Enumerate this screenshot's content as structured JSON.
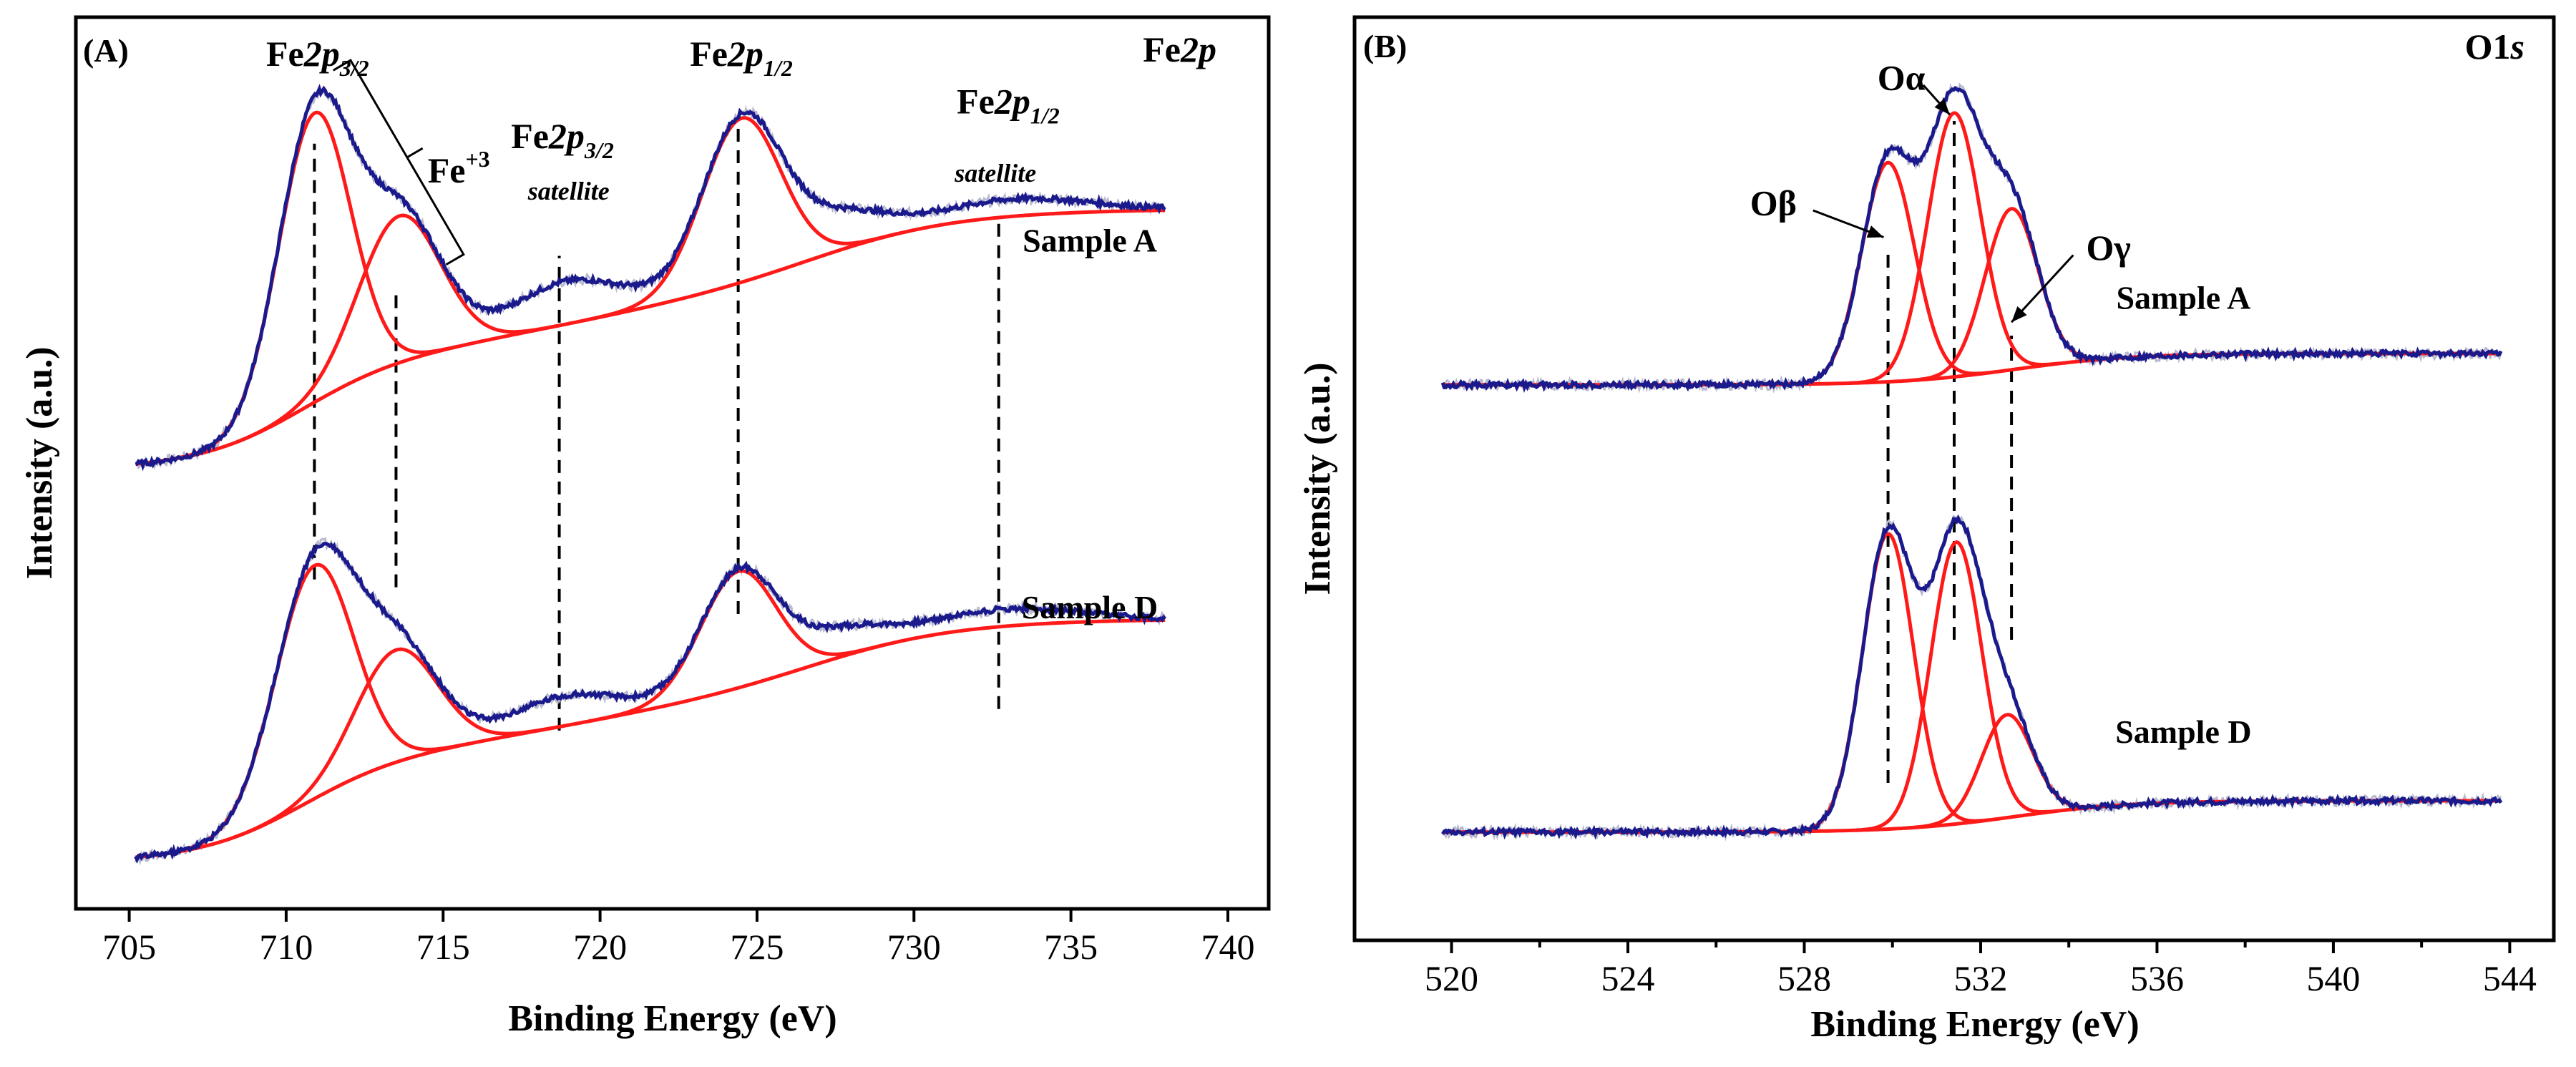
{
  "chart_data": [
    {
      "type": "line",
      "panel_label": "(A)",
      "corner_label": {
        "main": "Fe",
        "emph": "2p"
      },
      "xlabel": "Binding Energy (eV)",
      "ylabel": "Intensity (a.u.)",
      "xlim": [
        703.3,
        741.3
      ],
      "x_ticks": [
        705,
        710,
        715,
        720,
        725,
        730,
        735,
        740
      ],
      "x_tick_labels": [
        "705",
        "710",
        "715",
        "720",
        "725",
        "730",
        "735",
        "740"
      ],
      "ylim": [
        0,
        1
      ],
      "x_start": 705.2,
      "x_end": 738,
      "colors": {
        "envelope": "#1a1a8c",
        "component": "#ff1a1a",
        "raw": "#b9b9cf"
      },
      "annotations": [
        {
          "id": "fe2p32",
          "main": "Fe",
          "emph": "2p",
          "sub": "3/2",
          "x": 711,
          "y": 0.96
        },
        {
          "id": "fe3",
          "main": "Fe",
          "sup": "+3",
          "x": 715.5,
          "y": 0.825
        },
        {
          "id": "fe2p32sat",
          "main": "Fe",
          "emph": "2p",
          "sub": "3/2",
          "x": 718.8,
          "y": 0.865
        },
        {
          "id": "fe2p32sat_note",
          "text": "satellite",
          "x": 719,
          "y": 0.805
        },
        {
          "id": "fe2p12",
          "main": "Fe",
          "emph": "2p",
          "sub": "1/2",
          "x": 724.5,
          "y": 0.96
        },
        {
          "id": "fe2p12sat",
          "main": "Fe",
          "emph": "2p",
          "sub": "1/2",
          "x": 733,
          "y": 0.905
        },
        {
          "id": "fe2p12sat_note",
          "text": "satellite",
          "x": 732.6,
          "y": 0.826
        }
      ],
      "dashed_guides": [
        {
          "x": 710.9,
          "y1": 0.365,
          "y2": 0.87
        },
        {
          "x": 713.5,
          "y1": 0.356,
          "y2": 0.7
        },
        {
          "x": 718.7,
          "y1": 0.19,
          "y2": 0.74
        },
        {
          "x": 724.4,
          "y1": 0.325,
          "y2": 0.9
        },
        {
          "x": 732.7,
          "y1": 0.215,
          "y2": 0.78
        }
      ],
      "bracket": {
        "x1": 711.5,
        "x2": 715.1,
        "y1": 0.955,
        "y2": 0.73
      },
      "samples": [
        {
          "name": "Sample A",
          "label_pos": [
            735.6,
            0.745
          ],
          "baseline": {
            "y0": 0.49,
            "rise": [
              0.115,
              0.11,
              0.08
            ],
            "centers": [
              710.5,
              719,
              727
            ],
            "widths": [
              1.6,
              4.5,
              2.2
            ]
          },
          "components": [
            {
              "center": 710.9,
              "amp": 0.335,
              "sigma": 1.15
            },
            {
              "center": 713.6,
              "amp": 0.17,
              "sigma": 1.3
            },
            {
              "center": 718.9,
              "amp": 0.05,
              "sigma": 1.8
            },
            {
              "center": 724.5,
              "amp": 0.19,
              "sigma": 1.25
            },
            {
              "center": 727.5,
              "amp": 0.04,
              "sigma": 1.5
            },
            {
              "center": 733,
              "amp": 0.02,
              "sigma": 2.5
            }
          ]
        },
        {
          "name": "Sample D",
          "label_pos": [
            735.6,
            0.32
          ],
          "baseline": {
            "y0": 0.035,
            "rise": [
              0.11,
              0.1,
              0.075
            ],
            "centers": [
              710.5,
              719,
              727
            ],
            "widths": [
              1.6,
              4.5,
              2.2
            ]
          },
          "components": [
            {
              "center": 710.9,
              "amp": 0.27,
              "sigma": 1.25
            },
            {
              "center": 713.5,
              "amp": 0.13,
              "sigma": 1.3
            },
            {
              "center": 718.8,
              "amp": 0.035,
              "sigma": 1.8
            },
            {
              "center": 724.4,
              "amp": 0.135,
              "sigma": 1.2
            },
            {
              "center": 727.5,
              "amp": 0.03,
              "sigma": 1.5
            },
            {
              "center": 732.7,
              "amp": 0.02,
              "sigma": 2.5
            }
          ]
        }
      ]
    },
    {
      "type": "line",
      "panel_label": "(B)",
      "corner_label": {
        "main": "O1",
        "emph": "s"
      },
      "xlabel": "Binding Energy (eV)",
      "ylabel": "Intensity (a.u.)",
      "xlim": [
        517.8,
        545
      ],
      "x_ticks": [
        520,
        524,
        528,
        532,
        536,
        540,
        544
      ],
      "x_tick_labels": [
        "520",
        "524",
        "528",
        "532",
        "536",
        "540",
        "544"
      ],
      "x_minor_ticks": [
        522,
        526,
        530,
        534,
        538,
        542
      ],
      "ylim": [
        0,
        1
      ],
      "x_start": 519.8,
      "x_end": 543.8,
      "colors": {
        "envelope": "#1a1a8c",
        "component": "#ff1a1a",
        "raw": "#b9b9cf"
      },
      "annotations": [
        {
          "id": "oalpha",
          "text": "Oα",
          "x": 530.2,
          "y": 0.935
        },
        {
          "id": "obeta",
          "text": "Oβ",
          "x": 527.3,
          "y": 0.795
        },
        {
          "id": "ogamma",
          "text": "Oγ",
          "x": 534.9,
          "y": 0.745
        }
      ],
      "arrows": [
        {
          "from": [
            530.7,
            0.94
          ],
          "to": [
            531.3,
            0.907
          ]
        },
        {
          "from": [
            528.2,
            0.8
          ],
          "to": [
            529.8,
            0.77
          ]
        },
        {
          "from": [
            534.1,
            0.75
          ],
          "to": [
            532.7,
            0.675
          ]
        }
      ],
      "dashed_guides": [
        {
          "x": 529.9,
          "y1": 0.16,
          "y2": 0.76
        },
        {
          "x": 531.4,
          "y1": 0.32,
          "y2": 0.9
        },
        {
          "x": 532.7,
          "y1": 0.32,
          "y2": 0.66
        }
      ],
      "samples": [
        {
          "name": "Sample A",
          "label_pos": [
            536.6,
            0.69
          ],
          "baseline": {
            "y0": 0.605,
            "rise": [
              0.035
            ],
            "centers": [
              532.8
            ],
            "widths": [
              1.3
            ]
          },
          "components": [
            {
              "center": 529.9,
              "amp": 0.245,
              "sigma": 0.6
            },
            {
              "center": 531.4,
              "amp": 0.295,
              "sigma": 0.6
            },
            {
              "center": 532.7,
              "amp": 0.18,
              "sigma": 0.6
            }
          ]
        },
        {
          "name": "Sample D",
          "label_pos": [
            536.6,
            0.205
          ],
          "baseline": {
            "y0": 0.105,
            "rise": [
              0.035
            ],
            "centers": [
              532.8
            ],
            "widths": [
              1.3
            ]
          },
          "components": [
            {
              "center": 529.9,
              "amp": 0.33,
              "sigma": 0.58
            },
            {
              "center": 531.45,
              "amp": 0.315,
              "sigma": 0.58
            },
            {
              "center": 532.6,
              "amp": 0.115,
              "sigma": 0.58
            }
          ]
        }
      ]
    }
  ]
}
